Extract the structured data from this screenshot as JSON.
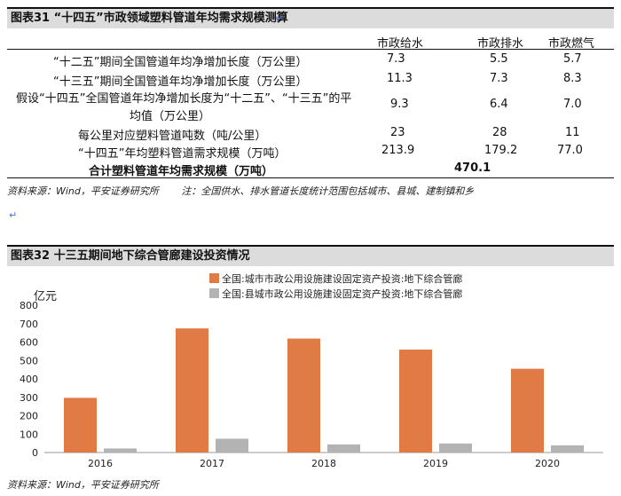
{
  "table31": {
    "title": "图表31 “十四五”市政领域塑料管道年均需求规模测算",
    "columns": [
      "市政给水",
      "市政排水",
      "市政燃气"
    ],
    "rows": [
      {
        "label": "“十二五”期间全国管道年均净增加长度（万公里）",
        "values": [
          "7.3",
          "5.5",
          "5.7"
        ]
      },
      {
        "label": "“十三五”期间全国管道年均净增加长度（万公里）",
        "values": [
          "11.3",
          "7.3",
          "8.3"
        ]
      },
      {
        "label_line1": "假设“十四五”全国管道年均净增加长度为“十二五”、“十三五”的平",
        "label_line2": "均值（万公里）",
        "values": [
          "9.3",
          "6.4",
          "7.0"
        ]
      },
      {
        "label": "每公里对应塑料管道吨数（吨/公里）",
        "values": [
          "23",
          "28",
          "11"
        ]
      },
      {
        "label": "“十四五”年均塑料管道需求规模（万吨）",
        "values": [
          "213.9",
          "179.2",
          "77.0"
        ]
      }
    ],
    "total_label": "合计塑料管道年均需求规模（万吨）",
    "total_value": "470.1",
    "source": "资料来源：Wind，平安证券研究所",
    "note": "注：全国供水、排水管道长度统计范围包括城市、县城、建制镇和乡"
  },
  "chart32": {
    "title": "图表32 十三五期间地下综合管廊建设投资情况",
    "source": "资料来源：Wind，平安证券研究所",
    "colors": {
      "orange": "#E07B45",
      "gray": "#B3B3B3"
    }
  },
  "chart_data": {
    "type": "bar",
    "categories": [
      "2016",
      "2017",
      "2018",
      "2019",
      "2020"
    ],
    "ylabel": "亿元",
    "ylim": [
      0,
      800
    ],
    "yticks": [
      0,
      100,
      200,
      300,
      400,
      500,
      600,
      700,
      800
    ],
    "grid": false,
    "legend_position": "top",
    "series": [
      {
        "name": "全国:城市市政公用设施建设固定资产投资:地下综合管廊",
        "color": "#E07B45",
        "values": [
          297,
          674,
          619,
          559,
          455
        ]
      },
      {
        "name": "全国:县城市政公用设施建设固定资产投资:地下综合管廊",
        "color": "#B3B3B3",
        "values": [
          22,
          75,
          44,
          49,
          39
        ]
      }
    ]
  }
}
